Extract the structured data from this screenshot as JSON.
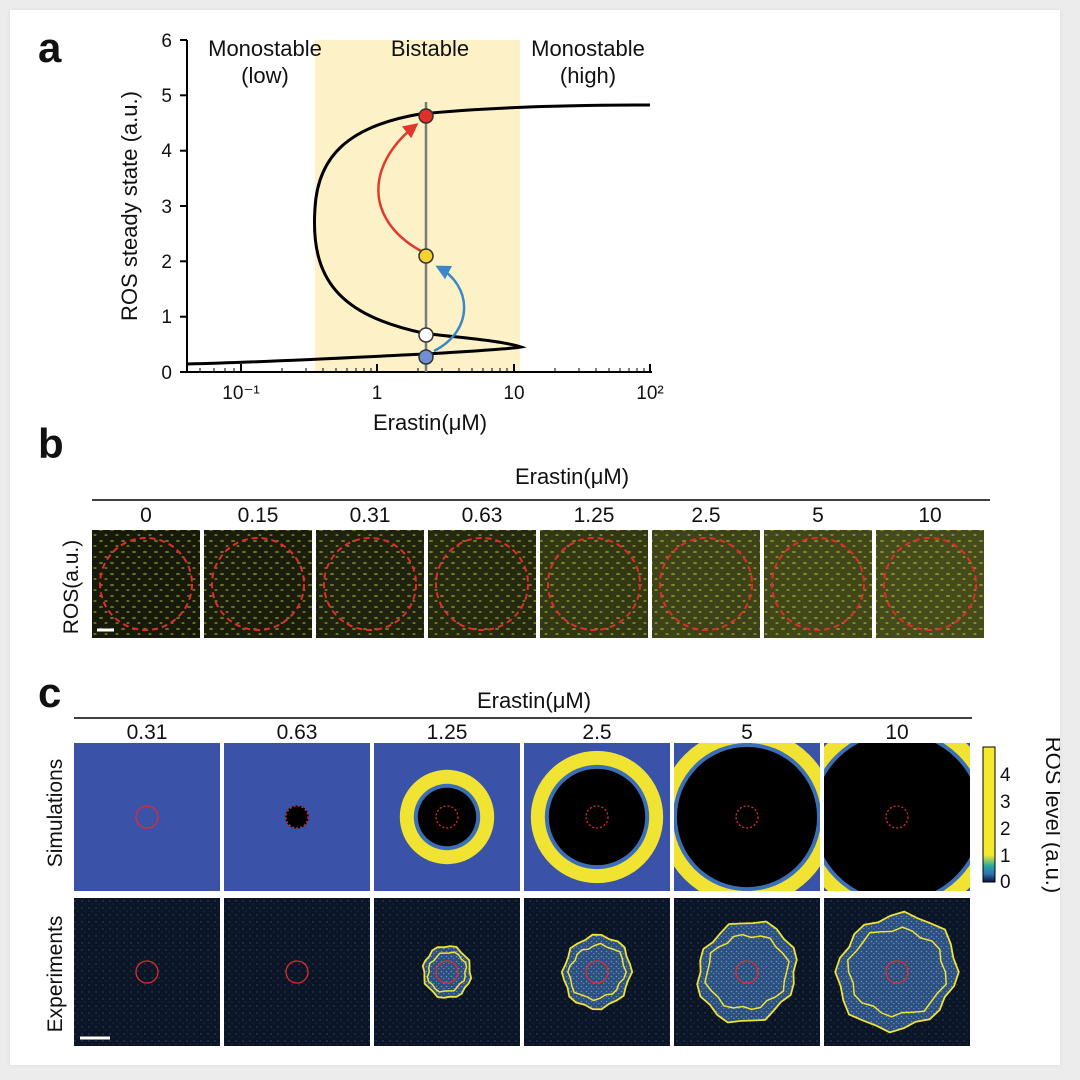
{
  "panels": {
    "a": {
      "letter": "a",
      "regions": {
        "left": [
          "Monostable",
          "(low)"
        ],
        "middle": "Bistable",
        "right": [
          "Monostable",
          "(high)"
        ]
      },
      "y_axis": {
        "title": "ROS steady state (a.u.)",
        "ticks": [
          "0",
          "1",
          "2",
          "3",
          "4",
          "5",
          "6"
        ]
      },
      "x_axis": {
        "title": "Erastin(μM)",
        "ticks": [
          "10⁻¹",
          "1",
          "10",
          "10²"
        ]
      },
      "colors": {
        "bistable_band": "#fdf1c7",
        "curve": "#000000",
        "marker_line": "#7a7a7a",
        "arrow_red": "#e03a2f",
        "arrow_blue": "#3b88c9"
      },
      "markers": [
        {
          "name": "high-state",
          "color": "#e0302a",
          "ros": 4.6
        },
        {
          "name": "intermediate-state",
          "color": "#f3d232",
          "ros": 2.05
        },
        {
          "name": "unstable-state",
          "color": "#ffffff",
          "ros": 0.65
        },
        {
          "name": "low-state",
          "color": "#6f90d6",
          "ros": 0.27
        }
      ]
    },
    "b": {
      "letter": "b",
      "header": "Erastin(μM)",
      "row_label": "ROS(a.u.)",
      "concentrations": [
        "0",
        "0.15",
        "0.31",
        "0.63",
        "1.25",
        "2.5",
        "5",
        "10"
      ],
      "intensity": [
        0.15,
        0.2,
        0.25,
        0.35,
        0.55,
        0.7,
        0.75,
        0.8
      ]
    },
    "c": {
      "letter": "c",
      "header": "Erastin(μM)",
      "concentrations": [
        "0.31",
        "0.63",
        "1.25",
        "2.5",
        "5",
        "10"
      ],
      "row_labels": {
        "top": "Simulations",
        "bottom": "Experiments"
      },
      "colorbar": {
        "title": "ROS level (a.u.)",
        "ticks": [
          "0",
          "1",
          "2",
          "3",
          "4"
        ]
      },
      "sim_core_fraction": [
        0,
        0.08,
        0.2,
        0.33,
        0.48,
        0.57
      ],
      "exp_ring_fraction": [
        0,
        0,
        0.34,
        0.48,
        0.68,
        0.8
      ]
    }
  }
}
